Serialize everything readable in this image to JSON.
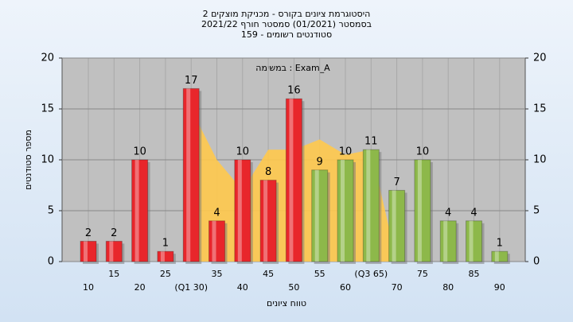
{
  "chart_data": {
    "type": "bar",
    "title_lines": [
      "היסטוגרמת ציונים בקורס - מכניקת מוצקים 2",
      "בסמסטר (01/2021)  סמסטר חורף 2021/22",
      "סטודנטים רשומים - 159"
    ],
    "annotation": "במשימה : Exam_A",
    "y_label": "מספר סטודנטים",
    "x_label": "טווח ציונים",
    "categories": [
      "10",
      "15",
      "20",
      "25",
      "(Q1 30)",
      "35",
      "40",
      "45",
      "50",
      "55",
      "60",
      "(Q3 65)",
      "70",
      "75",
      "80",
      "85",
      "90"
    ],
    "values": [
      2,
      2,
      10,
      1,
      17,
      4,
      10,
      8,
      16,
      9,
      10,
      11,
      7,
      10,
      4,
      4,
      1
    ],
    "colors": [
      "#e8262b",
      "#e8262b",
      "#e8262b",
      "#e8262b",
      "#e8262b",
      "#e8262b",
      "#e8262b",
      "#e8262b",
      "#e8262b",
      "#8db84a",
      "#8db84a",
      "#8db84a",
      "#8db84a",
      "#8db84a",
      "#8db84a",
      "#8db84a",
      "#8db84a"
    ],
    "area": {
      "color": "#ffc94d",
      "values": [
        null,
        null,
        null,
        null,
        15,
        10,
        7,
        11,
        11,
        12,
        10.5,
        11,
        0,
        null,
        null,
        null,
        null
      ]
    },
    "ylim": [
      0,
      20
    ],
    "yticks": [
      0,
      5,
      10,
      15,
      20
    ],
    "y2lim": [
      0,
      20
    ],
    "y2ticks": [
      0,
      5,
      10,
      15,
      20
    ],
    "grid": true
  }
}
